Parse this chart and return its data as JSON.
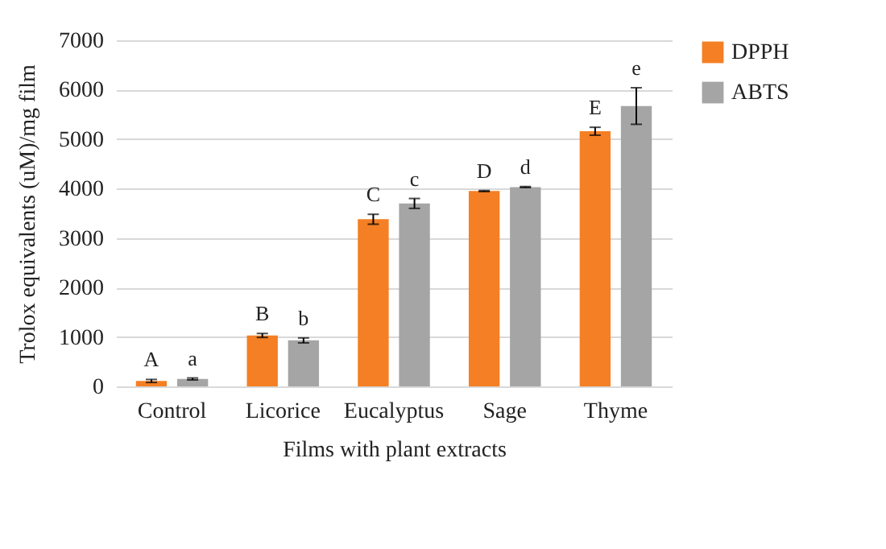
{
  "chart_data": {
    "type": "bar",
    "xlabel": "Films with plant extracts",
    "ylabel": "Trolox equivalents (uM)/mg film",
    "categories": [
      "Control",
      "Licorice",
      "Eucalyptus",
      "Sage",
      "Thyme"
    ],
    "series": [
      {
        "name": "DPPH",
        "color": "#f47f24",
        "values": [
          110,
          1030,
          3380,
          3950,
          5160
        ],
        "errors": [
          30,
          40,
          100,
          10,
          80
        ],
        "value_labels": [
          "A",
          "B",
          "C",
          "D",
          "E"
        ]
      },
      {
        "name": "ABTS",
        "color": "#a5a5a5",
        "values": [
          150,
          930,
          3700,
          4030,
          5670
        ],
        "errors": [
          20,
          50,
          100,
          10,
          370
        ],
        "value_labels": [
          "a",
          "b",
          "c",
          "d",
          "e"
        ]
      }
    ],
    "ylim": [
      0,
      7000
    ],
    "yticks": [
      0,
      1000,
      2000,
      3000,
      4000,
      5000,
      6000,
      7000
    ],
    "grid": "y",
    "legend": "right"
  }
}
